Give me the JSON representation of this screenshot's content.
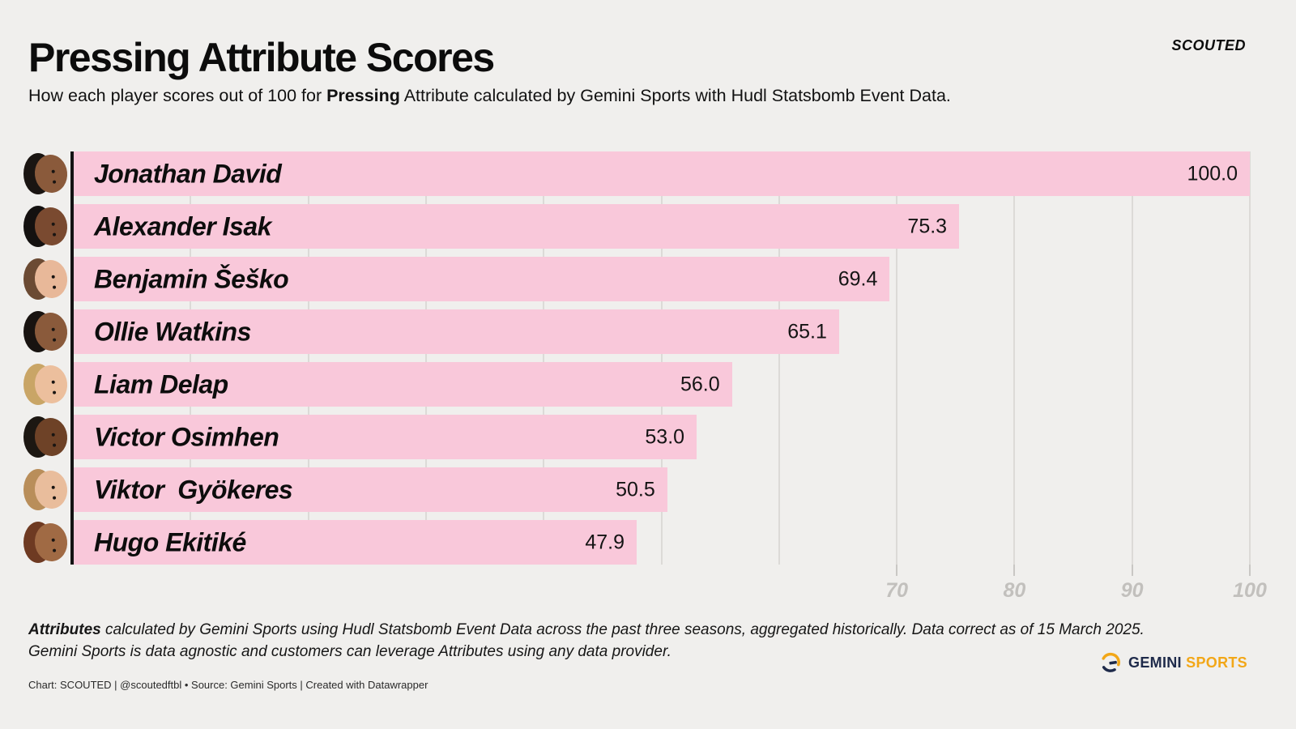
{
  "header": {
    "title": "Pressing Attribute Scores",
    "subtitle_prefix": "How each player scores out of 100 for ",
    "subtitle_bold": "Pressing",
    "subtitle_suffix": " Attribute calculated by Gemini Sports with Hudl Statsbomb Event Data.",
    "brand": "SCOUTED"
  },
  "chart_data": {
    "type": "bar",
    "title": "Pressing Attribute Scores",
    "orientation": "horizontal",
    "xlabel": "",
    "ylabel": "",
    "xlim": [
      0,
      100
    ],
    "grid_step": 10,
    "grid": true,
    "x_tick_labels": [
      70,
      80,
      90,
      100
    ],
    "bar_color": "#f9c8da",
    "categories": [
      "Jonathan David",
      "Alexander Isak",
      "Benjamin Šeško",
      "Ollie Watkins",
      "Liam Delap",
      "Victor Osimhen",
      "Viktor  Gyökeres",
      "Hugo Ekitiké"
    ],
    "values": [
      100.0,
      75.3,
      69.4,
      65.1,
      56.0,
      53.0,
      50.5,
      47.9
    ],
    "players": [
      {
        "name": "Jonathan David",
        "value": 100.0,
        "avatar": {
          "skin": "#8a5a3b",
          "hair": "#1a1512"
        }
      },
      {
        "name": "Alexander Isak",
        "value": 75.3,
        "avatar": {
          "skin": "#7a4a30",
          "hair": "#141110"
        }
      },
      {
        "name": "Benjamin Šeško",
        "value": 69.4,
        "avatar": {
          "skin": "#e8b899",
          "hair": "#6b4a33"
        }
      },
      {
        "name": "Ollie Watkins",
        "value": 65.1,
        "avatar": {
          "skin": "#8a5a3b",
          "hair": "#181310"
        }
      },
      {
        "name": "Liam Delap",
        "value": 56.0,
        "avatar": {
          "skin": "#ecbf9d",
          "hair": "#c9a566"
        }
      },
      {
        "name": "Victor Osimhen",
        "value": 53.0,
        "avatar": {
          "skin": "#6e4227",
          "hair": "#1c1712"
        }
      },
      {
        "name": "Viktor  Gyökeres",
        "value": 50.5,
        "avatar": {
          "skin": "#e9bd9c",
          "hair": "#b98e5a"
        }
      },
      {
        "name": "Hugo Ekitiké",
        "value": 47.9,
        "avatar": {
          "skin": "#a06a44",
          "hair": "#6e3a22"
        }
      }
    ]
  },
  "footer": {
    "note_bold": "Attributes",
    "note_line1": " calculated by Gemini Sports using Hudl Statsbomb Event Data across the past three seasons, aggregated historically. Data correct as of 15 March 2025.",
    "note_line2": "Gemini Sports is data agnostic and customers can leverage Attributes using any data provider.",
    "credit": "Chart: SCOUTED | @scoutedftbl • Source: Gemini Sports | Created with Datawrapper",
    "gemini_word1": "GEMINI",
    "gemini_word2": "SPORTS"
  },
  "colors": {
    "background": "#f0efed",
    "bar_pink": "#f9c8da",
    "gridline": "#dcdad7",
    "axis": "#131313",
    "tick_label": "#c2c0bd",
    "navy": "#1e2a4a",
    "gold": "#f2a718"
  }
}
